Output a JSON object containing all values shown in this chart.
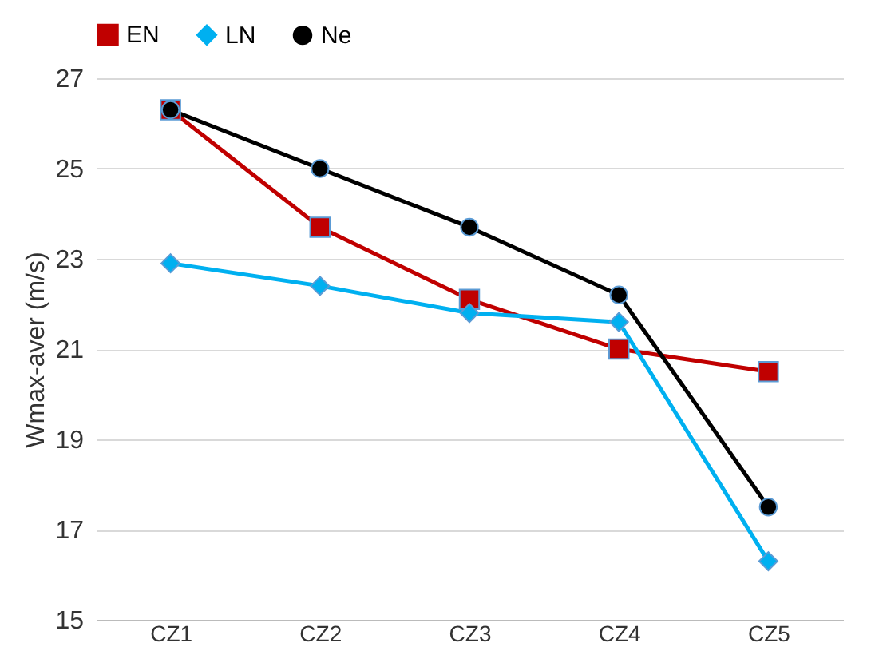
{
  "chart_data": {
    "type": "line",
    "ylabel": "Wmax-aver (m/s)",
    "categories": [
      "CZ1",
      "CZ2",
      "CZ3",
      "CZ4",
      "CZ5"
    ],
    "series": [
      {
        "name": "EN",
        "color": "#c00000",
        "marker": "square",
        "values": [
          26.3,
          23.7,
          22.1,
          21.0,
          20.5
        ]
      },
      {
        "name": "LN",
        "color": "#00b0f0",
        "marker": "diamond",
        "values": [
          22.9,
          22.4,
          21.8,
          21.6,
          16.3
        ]
      },
      {
        "name": "Ne",
        "color": "#000000",
        "marker": "circle",
        "values": [
          26.3,
          25.0,
          23.7,
          22.2,
          17.5
        ]
      }
    ],
    "ylim": [
      15,
      27
    ],
    "yticks": [
      15,
      17,
      19,
      21,
      23,
      25,
      27
    ],
    "grid": "y",
    "legend": "top",
    "line_style": "solid"
  }
}
